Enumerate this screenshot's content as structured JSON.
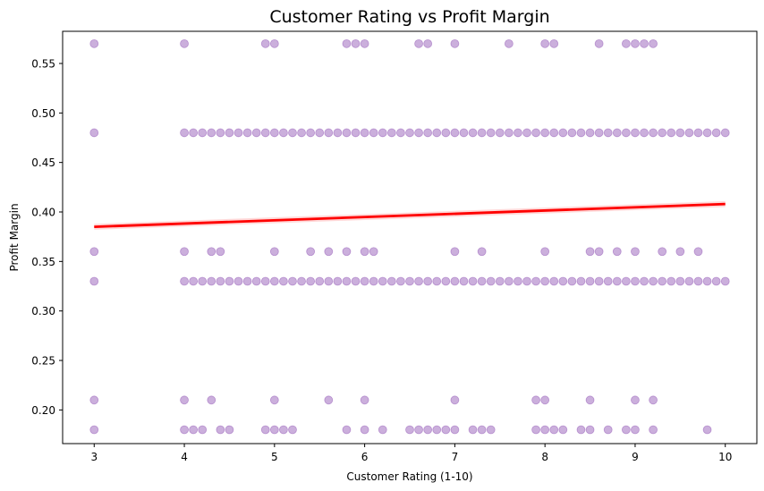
{
  "chart_data": {
    "type": "scatter",
    "title": "Customer Rating vs Profit Margin",
    "xlabel": "Customer Rating (1-10)",
    "ylabel": "Profit Margin",
    "xlim": [
      2.65,
      10.35
    ],
    "ylim": [
      0.166,
      0.5825
    ],
    "x_ticks": [
      3,
      4,
      5,
      6,
      7,
      8,
      9,
      10
    ],
    "y_ticks": [
      0.2,
      0.25,
      0.3,
      0.35,
      0.4,
      0.45,
      0.5,
      0.55
    ],
    "x_tick_labels": [
      "3",
      "4",
      "5",
      "6",
      "7",
      "8",
      "9",
      "10"
    ],
    "y_tick_labels": [
      "0.20",
      "0.25",
      "0.30",
      "0.35",
      "0.40",
      "0.45",
      "0.50",
      "0.55"
    ],
    "grid": false,
    "point_color": "#6a1b9a",
    "point_alpha": 0.35,
    "series": [
      {
        "points": [
          {
            "x": 3,
            "y": 0.57
          },
          {
            "x": 4,
            "y": 0.57
          },
          {
            "x": 4.9,
            "y": 0.57
          },
          {
            "x": 5,
            "y": 0.57
          },
          {
            "x": 5.8,
            "y": 0.57
          },
          {
            "x": 5.9,
            "y": 0.57
          },
          {
            "x": 6,
            "y": 0.57
          },
          {
            "x": 6.6,
            "y": 0.57
          },
          {
            "x": 6.7,
            "y": 0.57
          },
          {
            "x": 7,
            "y": 0.57
          },
          {
            "x": 7.6,
            "y": 0.57
          },
          {
            "x": 8,
            "y": 0.57
          },
          {
            "x": 8.1,
            "y": 0.57
          },
          {
            "x": 8.6,
            "y": 0.57
          },
          {
            "x": 8.9,
            "y": 0.57
          },
          {
            "x": 9,
            "y": 0.57
          },
          {
            "x": 9.1,
            "y": 0.57
          },
          {
            "x": 9.2,
            "y": 0.57
          },
          {
            "x": 3,
            "y": 0.48
          },
          {
            "x": 4,
            "y": 0.48
          },
          {
            "x": 4.1,
            "y": 0.48
          },
          {
            "x": 4.2,
            "y": 0.48
          },
          {
            "x": 4.3,
            "y": 0.48
          },
          {
            "x": 4.4,
            "y": 0.48
          },
          {
            "x": 4.5,
            "y": 0.48
          },
          {
            "x": 4.6,
            "y": 0.48
          },
          {
            "x": 4.7,
            "y": 0.48
          },
          {
            "x": 4.8,
            "y": 0.48
          },
          {
            "x": 4.9,
            "y": 0.48
          },
          {
            "x": 5,
            "y": 0.48
          },
          {
            "x": 5.1,
            "y": 0.48
          },
          {
            "x": 5.2,
            "y": 0.48
          },
          {
            "x": 5.3,
            "y": 0.48
          },
          {
            "x": 5.4,
            "y": 0.48
          },
          {
            "x": 5.5,
            "y": 0.48
          },
          {
            "x": 5.6,
            "y": 0.48
          },
          {
            "x": 5.7,
            "y": 0.48
          },
          {
            "x": 5.8,
            "y": 0.48
          },
          {
            "x": 5.9,
            "y": 0.48
          },
          {
            "x": 6,
            "y": 0.48
          },
          {
            "x": 6.1,
            "y": 0.48
          },
          {
            "x": 6.2,
            "y": 0.48
          },
          {
            "x": 6.3,
            "y": 0.48
          },
          {
            "x": 6.4,
            "y": 0.48
          },
          {
            "x": 6.5,
            "y": 0.48
          },
          {
            "x": 6.6,
            "y": 0.48
          },
          {
            "x": 6.7,
            "y": 0.48
          },
          {
            "x": 6.8,
            "y": 0.48
          },
          {
            "x": 6.9,
            "y": 0.48
          },
          {
            "x": 7,
            "y": 0.48
          },
          {
            "x": 7.1,
            "y": 0.48
          },
          {
            "x": 7.2,
            "y": 0.48
          },
          {
            "x": 7.3,
            "y": 0.48
          },
          {
            "x": 7.4,
            "y": 0.48
          },
          {
            "x": 7.5,
            "y": 0.48
          },
          {
            "x": 7.6,
            "y": 0.48
          },
          {
            "x": 7.7,
            "y": 0.48
          },
          {
            "x": 7.8,
            "y": 0.48
          },
          {
            "x": 7.9,
            "y": 0.48
          },
          {
            "x": 8,
            "y": 0.48
          },
          {
            "x": 8.1,
            "y": 0.48
          },
          {
            "x": 8.2,
            "y": 0.48
          },
          {
            "x": 8.3,
            "y": 0.48
          },
          {
            "x": 8.4,
            "y": 0.48
          },
          {
            "x": 8.5,
            "y": 0.48
          },
          {
            "x": 8.6,
            "y": 0.48
          },
          {
            "x": 8.7,
            "y": 0.48
          },
          {
            "x": 8.8,
            "y": 0.48
          },
          {
            "x": 8.9,
            "y": 0.48
          },
          {
            "x": 9,
            "y": 0.48
          },
          {
            "x": 9.1,
            "y": 0.48
          },
          {
            "x": 9.2,
            "y": 0.48
          },
          {
            "x": 9.3,
            "y": 0.48
          },
          {
            "x": 9.4,
            "y": 0.48
          },
          {
            "x": 9.5,
            "y": 0.48
          },
          {
            "x": 9.6,
            "y": 0.48
          },
          {
            "x": 9.7,
            "y": 0.48
          },
          {
            "x": 9.8,
            "y": 0.48
          },
          {
            "x": 9.9,
            "y": 0.48
          },
          {
            "x": 10,
            "y": 0.48
          },
          {
            "x": 3,
            "y": 0.36
          },
          {
            "x": 4,
            "y": 0.36
          },
          {
            "x": 4.3,
            "y": 0.36
          },
          {
            "x": 4.4,
            "y": 0.36
          },
          {
            "x": 5,
            "y": 0.36
          },
          {
            "x": 5.4,
            "y": 0.36
          },
          {
            "x": 5.6,
            "y": 0.36
          },
          {
            "x": 5.8,
            "y": 0.36
          },
          {
            "x": 6,
            "y": 0.36
          },
          {
            "x": 6.1,
            "y": 0.36
          },
          {
            "x": 7,
            "y": 0.36
          },
          {
            "x": 7.3,
            "y": 0.36
          },
          {
            "x": 8,
            "y": 0.36
          },
          {
            "x": 8.5,
            "y": 0.36
          },
          {
            "x": 8.6,
            "y": 0.36
          },
          {
            "x": 8.8,
            "y": 0.36
          },
          {
            "x": 9,
            "y": 0.36
          },
          {
            "x": 9.3,
            "y": 0.36
          },
          {
            "x": 9.5,
            "y": 0.36
          },
          {
            "x": 9.7,
            "y": 0.36
          },
          {
            "x": 3,
            "y": 0.33
          },
          {
            "x": 4,
            "y": 0.33
          },
          {
            "x": 4.1,
            "y": 0.33
          },
          {
            "x": 4.2,
            "y": 0.33
          },
          {
            "x": 4.3,
            "y": 0.33
          },
          {
            "x": 4.4,
            "y": 0.33
          },
          {
            "x": 4.5,
            "y": 0.33
          },
          {
            "x": 4.6,
            "y": 0.33
          },
          {
            "x": 4.7,
            "y": 0.33
          },
          {
            "x": 4.8,
            "y": 0.33
          },
          {
            "x": 4.9,
            "y": 0.33
          },
          {
            "x": 5,
            "y": 0.33
          },
          {
            "x": 5.1,
            "y": 0.33
          },
          {
            "x": 5.2,
            "y": 0.33
          },
          {
            "x": 5.3,
            "y": 0.33
          },
          {
            "x": 5.4,
            "y": 0.33
          },
          {
            "x": 5.5,
            "y": 0.33
          },
          {
            "x": 5.6,
            "y": 0.33
          },
          {
            "x": 5.7,
            "y": 0.33
          },
          {
            "x": 5.8,
            "y": 0.33
          },
          {
            "x": 5.9,
            "y": 0.33
          },
          {
            "x": 6,
            "y": 0.33
          },
          {
            "x": 6.1,
            "y": 0.33
          },
          {
            "x": 6.2,
            "y": 0.33
          },
          {
            "x": 6.3,
            "y": 0.33
          },
          {
            "x": 6.4,
            "y": 0.33
          },
          {
            "x": 6.5,
            "y": 0.33
          },
          {
            "x": 6.6,
            "y": 0.33
          },
          {
            "x": 6.7,
            "y": 0.33
          },
          {
            "x": 6.8,
            "y": 0.33
          },
          {
            "x": 6.9,
            "y": 0.33
          },
          {
            "x": 7,
            "y": 0.33
          },
          {
            "x": 7.1,
            "y": 0.33
          },
          {
            "x": 7.2,
            "y": 0.33
          },
          {
            "x": 7.3,
            "y": 0.33
          },
          {
            "x": 7.4,
            "y": 0.33
          },
          {
            "x": 7.5,
            "y": 0.33
          },
          {
            "x": 7.6,
            "y": 0.33
          },
          {
            "x": 7.7,
            "y": 0.33
          },
          {
            "x": 7.8,
            "y": 0.33
          },
          {
            "x": 7.9,
            "y": 0.33
          },
          {
            "x": 8,
            "y": 0.33
          },
          {
            "x": 8.1,
            "y": 0.33
          },
          {
            "x": 8.2,
            "y": 0.33
          },
          {
            "x": 8.3,
            "y": 0.33
          },
          {
            "x": 8.4,
            "y": 0.33
          },
          {
            "x": 8.5,
            "y": 0.33
          },
          {
            "x": 8.6,
            "y": 0.33
          },
          {
            "x": 8.7,
            "y": 0.33
          },
          {
            "x": 8.8,
            "y": 0.33
          },
          {
            "x": 8.9,
            "y": 0.33
          },
          {
            "x": 9,
            "y": 0.33
          },
          {
            "x": 9.1,
            "y": 0.33
          },
          {
            "x": 9.2,
            "y": 0.33
          },
          {
            "x": 9.3,
            "y": 0.33
          },
          {
            "x": 9.4,
            "y": 0.33
          },
          {
            "x": 9.5,
            "y": 0.33
          },
          {
            "x": 9.6,
            "y": 0.33
          },
          {
            "x": 9.7,
            "y": 0.33
          },
          {
            "x": 9.8,
            "y": 0.33
          },
          {
            "x": 9.9,
            "y": 0.33
          },
          {
            "x": 10,
            "y": 0.33
          },
          {
            "x": 3,
            "y": 0.21
          },
          {
            "x": 4,
            "y": 0.21
          },
          {
            "x": 4.3,
            "y": 0.21
          },
          {
            "x": 5,
            "y": 0.21
          },
          {
            "x": 5.6,
            "y": 0.21
          },
          {
            "x": 6,
            "y": 0.21
          },
          {
            "x": 7,
            "y": 0.21
          },
          {
            "x": 7.9,
            "y": 0.21
          },
          {
            "x": 8,
            "y": 0.21
          },
          {
            "x": 8.5,
            "y": 0.21
          },
          {
            "x": 9,
            "y": 0.21
          },
          {
            "x": 9.2,
            "y": 0.21
          },
          {
            "x": 3,
            "y": 0.18
          },
          {
            "x": 4,
            "y": 0.18
          },
          {
            "x": 4.1,
            "y": 0.18
          },
          {
            "x": 4.2,
            "y": 0.18
          },
          {
            "x": 4.4,
            "y": 0.18
          },
          {
            "x": 4.5,
            "y": 0.18
          },
          {
            "x": 4.9,
            "y": 0.18
          },
          {
            "x": 5,
            "y": 0.18
          },
          {
            "x": 5.1,
            "y": 0.18
          },
          {
            "x": 5.2,
            "y": 0.18
          },
          {
            "x": 5.8,
            "y": 0.18
          },
          {
            "x": 6,
            "y": 0.18
          },
          {
            "x": 6.2,
            "y": 0.18
          },
          {
            "x": 6.5,
            "y": 0.18
          },
          {
            "x": 6.6,
            "y": 0.18
          },
          {
            "x": 6.7,
            "y": 0.18
          },
          {
            "x": 6.8,
            "y": 0.18
          },
          {
            "x": 6.9,
            "y": 0.18
          },
          {
            "x": 7,
            "y": 0.18
          },
          {
            "x": 7.2,
            "y": 0.18
          },
          {
            "x": 7.3,
            "y": 0.18
          },
          {
            "x": 7.4,
            "y": 0.18
          },
          {
            "x": 7.9,
            "y": 0.18
          },
          {
            "x": 8,
            "y": 0.18
          },
          {
            "x": 8.1,
            "y": 0.18
          },
          {
            "x": 8.2,
            "y": 0.18
          },
          {
            "x": 8.4,
            "y": 0.18
          },
          {
            "x": 8.5,
            "y": 0.18
          },
          {
            "x": 8.7,
            "y": 0.18
          },
          {
            "x": 8.9,
            "y": 0.18
          },
          {
            "x": 9,
            "y": 0.18
          },
          {
            "x": 9.2,
            "y": 0.18
          },
          {
            "x": 9.8,
            "y": 0.18
          }
        ]
      }
    ],
    "regression": {
      "color": "#ff0000",
      "start": {
        "x": 3,
        "y": 0.385
      },
      "end": {
        "x": 10,
        "y": 0.408
      },
      "ci_half_width": 0.003
    }
  }
}
